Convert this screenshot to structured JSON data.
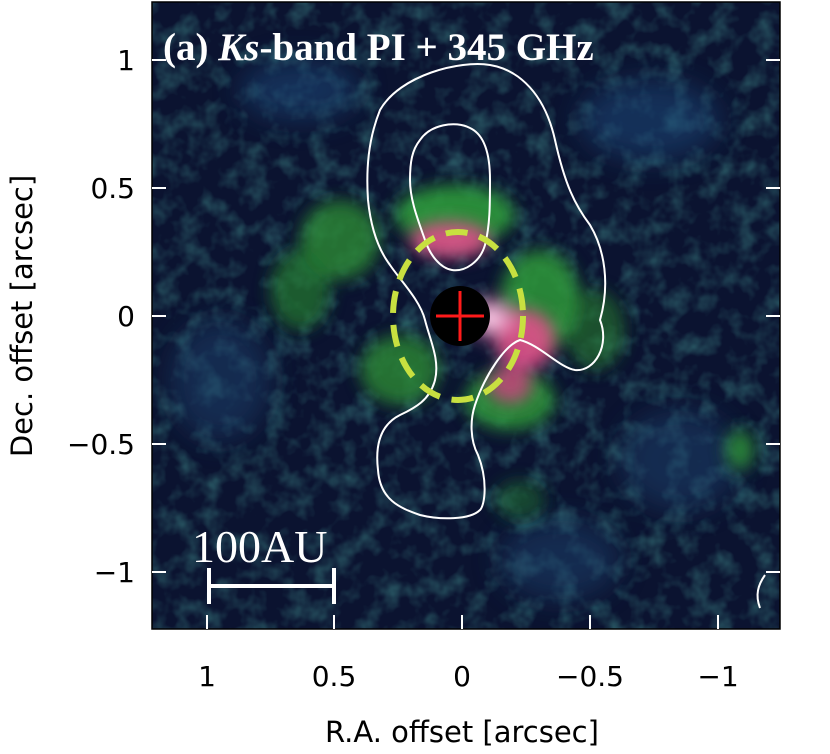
{
  "panel": {
    "title_prefix": "(a) ",
    "title_band": "Ks",
    "title_suffix": "-band PI + 345 GHz"
  },
  "axes": {
    "xlabel": "R.A. offset [arcsec]",
    "ylabel": "Dec. offset [arcsec]",
    "x_ticks": [
      "1",
      "0.5",
      "0",
      "−0.5",
      "−1"
    ],
    "y_ticks": [
      "1",
      "0.5",
      "0",
      "−0.5",
      "−1"
    ]
  },
  "scale_bar": {
    "label": "100AU"
  },
  "colors": {
    "background": "#0b1330",
    "green_emission": "#2f9a3a",
    "pink_emission": "#e0508a",
    "contour": "#ffffff",
    "dashed_ellipse": "#c8e040",
    "star_mask": "#000000",
    "star_cross": "#ff1a1a"
  }
}
